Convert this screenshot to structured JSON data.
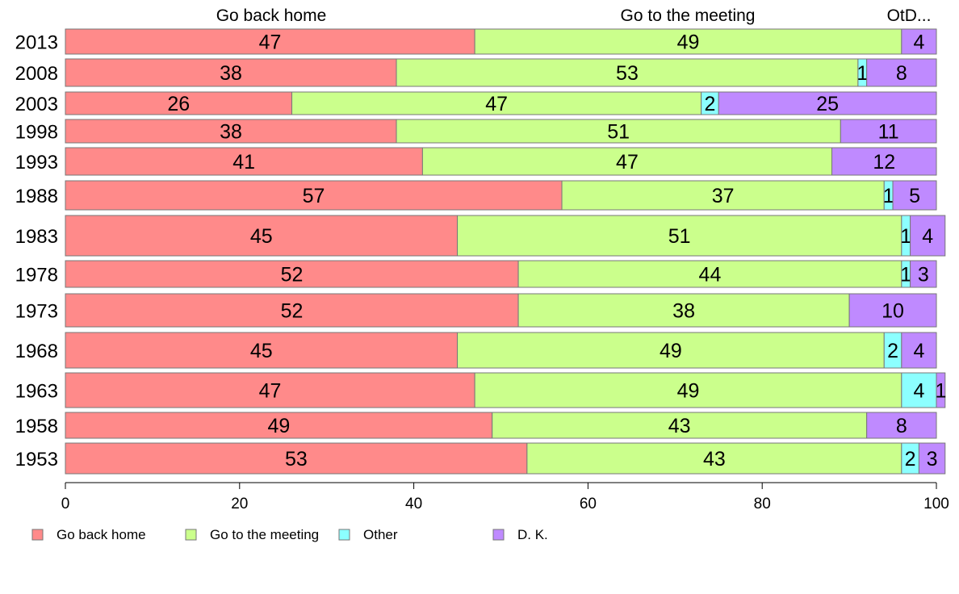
{
  "chart_data": {
    "type": "bar",
    "orientation": "horizontal",
    "stacked": true,
    "categories": [
      "2013",
      "2008",
      "2003",
      "1998",
      "1993",
      "1988",
      "1983",
      "1978",
      "1973",
      "1968",
      "1963",
      "1958",
      "1953"
    ],
    "series": [
      {
        "name": "Go back home",
        "color": "#ff8a8a",
        "values": [
          47,
          38,
          26,
          38,
          41,
          57,
          45,
          52,
          52,
          45,
          47,
          49,
          53
        ]
      },
      {
        "name": "Go to the meeting",
        "color": "#cbff8c",
        "values": [
          49,
          53,
          47,
          51,
          47,
          37,
          51,
          44,
          38,
          49,
          49,
          43,
          43
        ]
      },
      {
        "name": "Other",
        "color": "#8cffff",
        "values": [
          0,
          1,
          2,
          0,
          0,
          1,
          1,
          1,
          0,
          2,
          4,
          0,
          2
        ]
      },
      {
        "name": "D. K.",
        "color": "#bf8aff",
        "values": [
          4,
          8,
          25,
          11,
          12,
          5,
          4,
          3,
          10,
          4,
          1,
          8,
          3
        ]
      }
    ],
    "segment_labels": [
      [
        "47",
        "49",
        "",
        "4"
      ],
      [
        "38",
        "53",
        "1",
        "8"
      ],
      [
        "26",
        "47",
        "2",
        "25"
      ],
      [
        "38",
        "51",
        "",
        "11"
      ],
      [
        "41",
        "47",
        "",
        "12"
      ],
      [
        "57",
        "37",
        "1",
        "5"
      ],
      [
        "45",
        "51",
        "1",
        "4"
      ],
      [
        "52",
        "44",
        "1",
        "3"
      ],
      [
        "52",
        "38",
        "",
        "10"
      ],
      [
        "45",
        "49",
        "2",
        "4"
      ],
      [
        "47",
        "49",
        "4",
        "1"
      ],
      [
        "49",
        "43",
        "",
        "8"
      ],
      [
        "53",
        "43",
        "2",
        "3"
      ]
    ],
    "top_labels": [
      "Go back home",
      "Go to the meeting",
      "OtD..."
    ],
    "xlim": [
      0,
      100
    ],
    "xticks": [
      0,
      20,
      40,
      60,
      80,
      100
    ],
    "xtick_labels": [
      "0",
      "20",
      "40",
      "60",
      "80",
      "100"
    ],
    "grid": false,
    "legend_position": "bottom-left"
  }
}
